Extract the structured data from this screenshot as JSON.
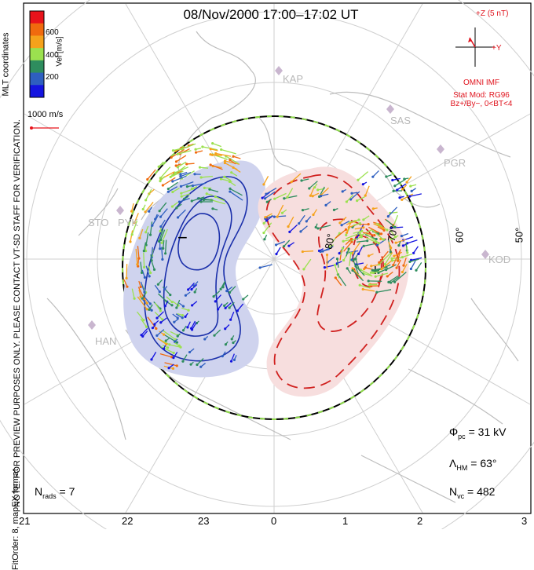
{
  "title": "08/Nov/2000  17:00–17:02  UT",
  "note": {
    "line1": "NOTE: FOR PREVIEW PURPOSES ONLY. PLEASE CONTACT VT-SD STAFF FOR VERIFICATION.",
    "line2": "FitOrder: 8,  mapEX format"
  },
  "coordinates_label": "MLT coordinates",
  "colorbar": {
    "title": "Vel [m/s]",
    "ticks": [
      "600",
      "400",
      "200"
    ],
    "colors": [
      "#e8131b",
      "#f06a0e",
      "#f5a21b",
      "#9be14f",
      "#2e8d5e",
      "#2e5fc0",
      "#1414e0"
    ]
  },
  "velocity_scale_label": "1000 m/s",
  "imf": {
    "z_label": "+Z (5 nT)",
    "y_label": "+Y",
    "source": "OMNI IMF",
    "stat_mod": "Stat Mod: RG96",
    "condition": "Bz+/By−, 0<BT<4",
    "color": "#e0141e"
  },
  "stations": [
    "KAP",
    "SAS",
    "PGR",
    "STO",
    "PYK",
    "HAN",
    "KOD"
  ],
  "latitude_labels": [
    "80°",
    "70°",
    "60°",
    "50°"
  ],
  "mlt_ticks": [
    "21",
    "22",
    "23",
    "0",
    "1",
    "2",
    "3"
  ],
  "stats": {
    "phi_pc": "31 kV",
    "lambda_hm": "63°",
    "n_vc": "482",
    "n_rads": "7"
  },
  "contours": {
    "negative_color": "#1a2faa",
    "positive_color": "#d0201e",
    "negative_marker": "−",
    "positive_marker": "+",
    "positive_fill": "#f7dede",
    "negative_fill": "#cfd3ee"
  }
}
